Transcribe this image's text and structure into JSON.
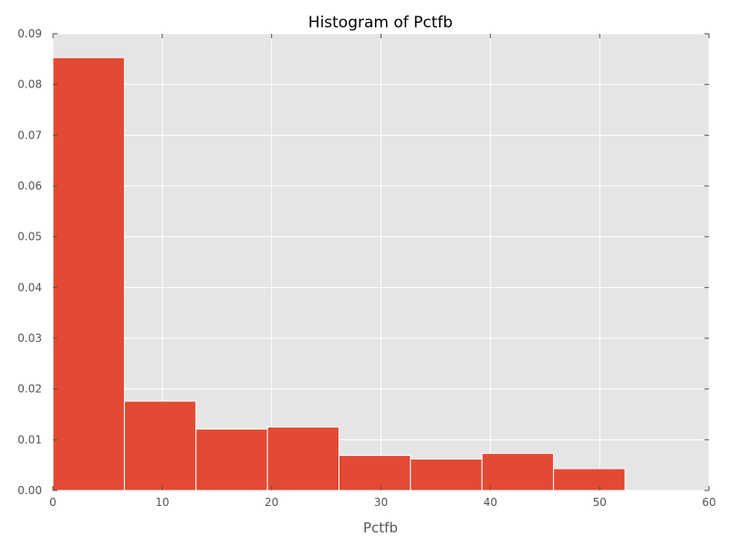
{
  "chart_data": {
    "type": "bar",
    "title": "Histogram of Pctfb",
    "xlabel": "Pctfb",
    "ylabel": "",
    "xlim": [
      0,
      60
    ],
    "ylim": [
      0,
      0.09
    ],
    "xticks": [
      "0",
      "10",
      "20",
      "30",
      "40",
      "50",
      "60"
    ],
    "yticks": [
      "0.00",
      "0.01",
      "0.02",
      "0.03",
      "0.04",
      "0.05",
      "0.06",
      "0.07",
      "0.08",
      "0.09"
    ],
    "grid": true,
    "bins": [
      {
        "x0": 0.0,
        "x1": 6.54,
        "value": 0.0853
      },
      {
        "x0": 6.54,
        "x1": 13.08,
        "value": 0.0176
      },
      {
        "x0": 13.08,
        "x1": 19.62,
        "value": 0.0121
      },
      {
        "x0": 19.62,
        "x1": 26.16,
        "value": 0.0125
      },
      {
        "x0": 26.16,
        "x1": 32.7,
        "value": 0.0069
      },
      {
        "x0": 32.7,
        "x1": 39.24,
        "value": 0.0062
      },
      {
        "x0": 39.24,
        "x1": 45.78,
        "value": 0.0073
      },
      {
        "x0": 45.78,
        "x1": 52.32,
        "value": 0.0043
      }
    ],
    "colors": {
      "bar": "#E24A33",
      "bar_edge": "#ffffff",
      "plot_background": "#E5E5E5",
      "grid": "#ffffff",
      "tick": "#555555"
    }
  }
}
